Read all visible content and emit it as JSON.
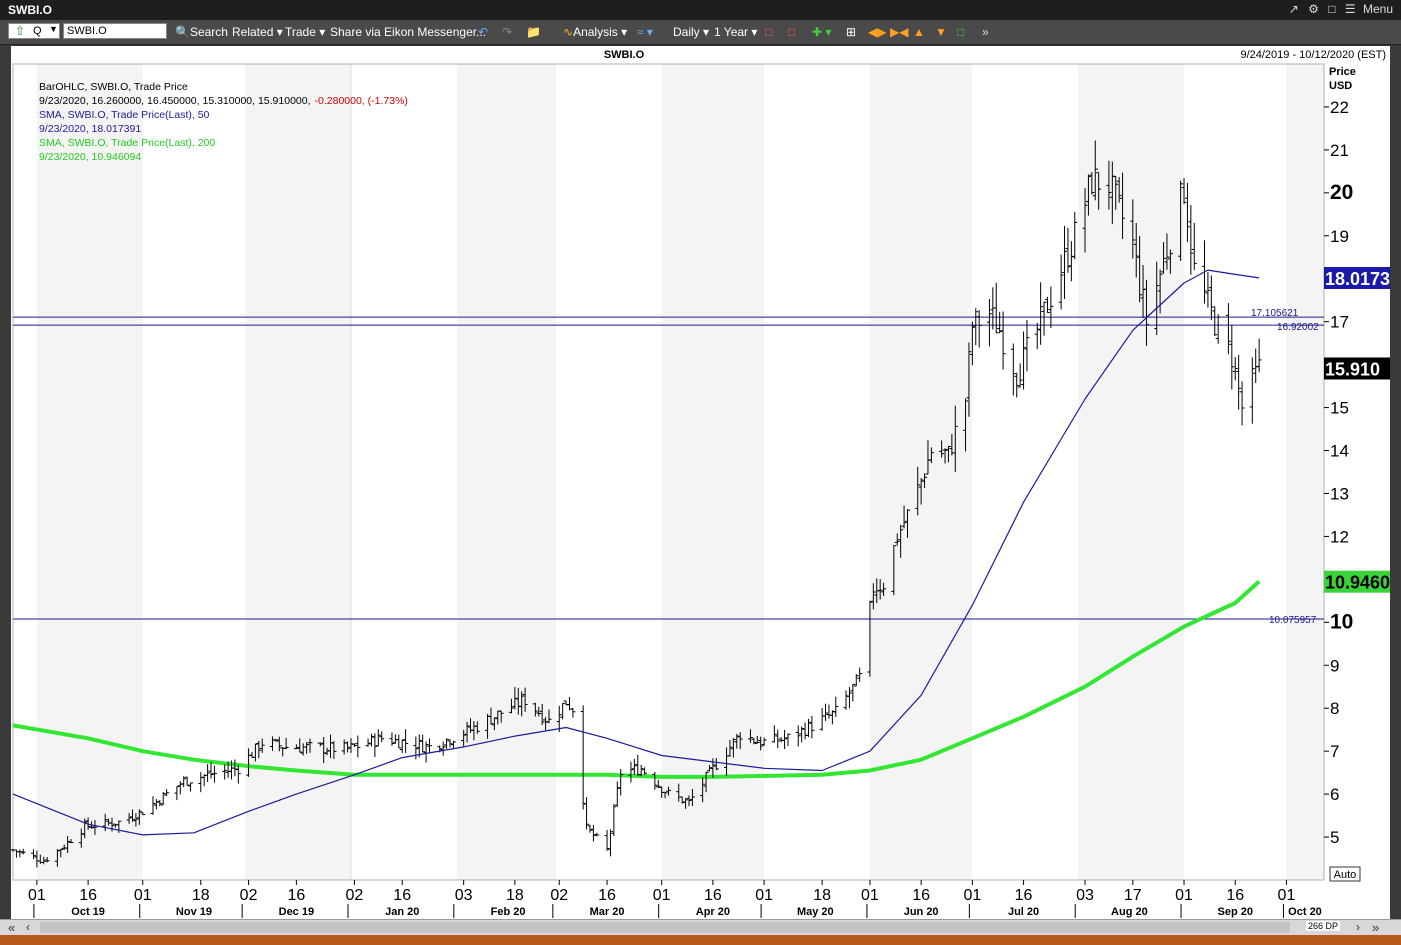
{
  "window": {
    "title": "SWBI.O",
    "menu_label": "Menu"
  },
  "toolbar": {
    "symbol_value": "SWBI.O",
    "q_label": "Q",
    "search_label": "Search",
    "related_label": "Related",
    "trade_label": "Trade",
    "share_label": "Share via Eikon Messenger...",
    "analysis_label": "Analysis",
    "interval_label": "Daily",
    "range_label": "1 Year"
  },
  "header": {
    "title": "SWBI.O",
    "date_range": "9/24/2019 - 10/12/2020 (EST)"
  },
  "legend": {
    "line1": "BarOHLC, SWBI.O, Trade Price",
    "line2_values": "9/23/2020, 16.260000, 16.450000, 15.310000, 15.910000,",
    "line2_change": "-0.280000, (-1.73%)",
    "line3": "SMA, SWBI.O, Trade Price(Last),  50",
    "line4": "9/23/2020, 18.017391",
    "line5": "SMA, SWBI.O, Trade Price(Last),  200",
    "line6": "9/23/2020, 10.946094"
  },
  "axis": {
    "price_label": "Price",
    "currency_label": "USD",
    "auto_label": "Auto",
    "dp_label": "266 DP"
  },
  "chart_data": {
    "type": "bar",
    "title": "SWBI.O",
    "ylim": [
      4.0,
      23.0
    ],
    "y_ticks": [
      5,
      6,
      7,
      8,
      9,
      10,
      11,
      12,
      13,
      14,
      15,
      16,
      17,
      18,
      19,
      20,
      21,
      22
    ],
    "bold_ticks": [
      10,
      20
    ],
    "x_day_labels": [
      "01",
      "16",
      "01",
      "18",
      "02",
      "16",
      "02",
      "16",
      "03",
      "18",
      "02",
      "16",
      "01",
      "16",
      "01",
      "18",
      "01",
      "16",
      "01",
      "16",
      "03",
      "17",
      "01",
      "16",
      "01"
    ],
    "x_day_label_dates": [
      "2019-10-01",
      "2019-10-16",
      "2019-11-01",
      "2019-11-18",
      "2019-12-02",
      "2019-12-16",
      "2020-01-02",
      "2020-01-16",
      "2020-02-03",
      "2020-02-18",
      "2020-03-02",
      "2020-03-16",
      "2020-04-01",
      "2020-04-16",
      "2020-05-01",
      "2020-05-18",
      "2020-06-01",
      "2020-06-16",
      "2020-07-01",
      "2020-07-16",
      "2020-08-03",
      "2020-08-17",
      "2020-09-01",
      "2020-09-16",
      "2020-10-01"
    ],
    "x_month_labels": [
      "Oct 19",
      "Nov 19",
      "Dec 19",
      "Jan 20",
      "Feb 20",
      "Mar 20",
      "Apr 20",
      "May 20",
      "Jun 20",
      "Jul 20",
      "Aug 20",
      "Sep 20",
      "Oct 20"
    ],
    "x_month_label_dates": [
      "2019-10-16",
      "2019-11-16",
      "2019-12-16",
      "2020-01-16",
      "2020-02-16",
      "2020-03-16",
      "2020-04-16",
      "2020-05-16",
      "2020-06-16",
      "2020-07-16",
      "2020-08-16",
      "2020-09-16",
      "2020-10-16"
    ],
    "x_range": [
      "2019-09-24",
      "2020-10-12"
    ],
    "price_path": [
      [
        "2019-09-24",
        4.7
      ],
      [
        "2019-10-03",
        4.45
      ],
      [
        "2019-10-09",
        4.8
      ],
      [
        "2019-10-15",
        5.25
      ],
      [
        "2019-10-25",
        5.35
      ],
      [
        "2019-11-01",
        5.6
      ],
      [
        "2019-11-08",
        6.0
      ],
      [
        "2019-11-13",
        6.3
      ],
      [
        "2019-11-20",
        6.45
      ],
      [
        "2019-11-29",
        6.6
      ],
      [
        "2019-12-06",
        7.2
      ],
      [
        "2019-12-13",
        7.1
      ],
      [
        "2019-12-31",
        7.05
      ],
      [
        "2020-01-10",
        7.3
      ],
      [
        "2020-01-24",
        7.1
      ],
      [
        "2020-02-05",
        7.5
      ],
      [
        "2020-02-14",
        7.9
      ],
      [
        "2020-02-21",
        8.2
      ],
      [
        "2020-02-28",
        7.7
      ],
      [
        "2020-03-04",
        8.15
      ],
      [
        "2020-03-06",
        8.0
      ],
      [
        "2020-03-10",
        5.2
      ],
      [
        "2020-03-16",
        4.7
      ],
      [
        "2020-03-20",
        6.5
      ],
      [
        "2020-03-26",
        6.6
      ],
      [
        "2020-04-03",
        6.0
      ],
      [
        "2020-04-09",
        5.8
      ],
      [
        "2020-04-16",
        6.6
      ],
      [
        "2020-04-24",
        7.4
      ],
      [
        "2020-04-30",
        7.2
      ],
      [
        "2020-05-08",
        7.3
      ],
      [
        "2020-05-15",
        7.6
      ],
      [
        "2020-05-22",
        7.9
      ],
      [
        "2020-05-29",
        8.7
      ],
      [
        "2020-06-02",
        10.8
      ],
      [
        "2020-06-05",
        10.9
      ],
      [
        "2020-06-09",
        12.0
      ],
      [
        "2020-06-12",
        12.5
      ],
      [
        "2020-06-16",
        13.3
      ],
      [
        "2020-06-19",
        14.0
      ],
      [
        "2020-06-24",
        13.9
      ],
      [
        "2020-06-29",
        15.2
      ],
      [
        "2020-07-01",
        16.9
      ],
      [
        "2020-07-06",
        17.2
      ],
      [
        "2020-07-09",
        16.8
      ],
      [
        "2020-07-14",
        15.8
      ],
      [
        "2020-07-20",
        16.8
      ],
      [
        "2020-07-27",
        18.2
      ],
      [
        "2020-07-31",
        19.0
      ],
      [
        "2020-08-05",
        20.3
      ],
      [
        "2020-08-10",
        20.2
      ],
      [
        "2020-08-17",
        18.8
      ],
      [
        "2020-08-21",
        17.0
      ],
      [
        "2020-08-26",
        18.4
      ],
      [
        "2020-09-01",
        20.1
      ],
      [
        "2020-09-04",
        18.2
      ],
      [
        "2020-09-10",
        17.0
      ],
      [
        "2020-09-15",
        16.2
      ],
      [
        "2020-09-18",
        15.0
      ],
      [
        "2020-09-21",
        15.6
      ],
      [
        "2020-09-23",
        15.91
      ]
    ],
    "sma50_path": [
      [
        "2019-09-24",
        6.0
      ],
      [
        "2019-10-16",
        5.3
      ],
      [
        "2019-11-01",
        5.05
      ],
      [
        "2019-11-16",
        5.1
      ],
      [
        "2019-12-02",
        5.6
      ],
      [
        "2019-12-16",
        6.0
      ],
      [
        "2020-01-02",
        6.45
      ],
      [
        "2020-01-16",
        6.85
      ],
      [
        "2020-02-03",
        7.1
      ],
      [
        "2020-02-18",
        7.35
      ],
      [
        "2020-03-04",
        7.55
      ],
      [
        "2020-03-16",
        7.3
      ],
      [
        "2020-04-01",
        6.9
      ],
      [
        "2020-04-16",
        6.75
      ],
      [
        "2020-05-01",
        6.6
      ],
      [
        "2020-05-18",
        6.55
      ],
      [
        "2020-06-01",
        7.0
      ],
      [
        "2020-06-16",
        8.3
      ],
      [
        "2020-07-01",
        10.4
      ],
      [
        "2020-07-16",
        12.8
      ],
      [
        "2020-08-03",
        15.2
      ],
      [
        "2020-08-17",
        16.8
      ],
      [
        "2020-09-01",
        17.9
      ],
      [
        "2020-09-08",
        18.2
      ],
      [
        "2020-09-16",
        18.1
      ],
      [
        "2020-09-23",
        18.02
      ]
    ],
    "sma200_path": [
      [
        "2019-09-24",
        7.6
      ],
      [
        "2019-10-16",
        7.3
      ],
      [
        "2019-11-01",
        7.0
      ],
      [
        "2019-11-16",
        6.8
      ],
      [
        "2019-12-02",
        6.65
      ],
      [
        "2019-12-16",
        6.55
      ],
      [
        "2020-01-02",
        6.45
      ],
      [
        "2020-02-03",
        6.45
      ],
      [
        "2020-03-02",
        6.45
      ],
      [
        "2020-03-16",
        6.45
      ],
      [
        "2020-04-01",
        6.4
      ],
      [
        "2020-04-16",
        6.4
      ],
      [
        "2020-05-18",
        6.45
      ],
      [
        "2020-06-01",
        6.55
      ],
      [
        "2020-06-16",
        6.8
      ],
      [
        "2020-07-01",
        7.3
      ],
      [
        "2020-07-16",
        7.8
      ],
      [
        "2020-08-03",
        8.5
      ],
      [
        "2020-08-17",
        9.2
      ],
      [
        "2020-09-01",
        9.9
      ],
      [
        "2020-09-16",
        10.45
      ],
      [
        "2020-09-23",
        10.95
      ]
    ],
    "horizontal_lines": [
      {
        "value": 17.105621,
        "label": "17.105621"
      },
      {
        "value": 16.92002,
        "label": "16.92002"
      },
      {
        "value": 10.075957,
        "label": "10.075957"
      }
    ],
    "last_value_tags": [
      {
        "value": 18.017391,
        "label": "18.0173",
        "color": "#1a1aa8"
      },
      {
        "value": 15.91,
        "label": "15.910",
        "color": "#000000"
      },
      {
        "value": 10.946094,
        "label": "10.9460",
        "color": "#3ad43a"
      }
    ],
    "series": [
      {
        "name": "BarOHLC, SWBI.O, Trade Price",
        "color": "#000000"
      },
      {
        "name": "SMA, SWBI.O, Trade Price(Last),  50",
        "color": "#1c1c9c"
      },
      {
        "name": "SMA, SWBI.O, Trade Price(Last),  200",
        "color": "#33e633"
      }
    ],
    "grid": false
  },
  "colors": {
    "background": "#3a3a3a",
    "plot_bg": "#ffffff",
    "band_bg": "#f4f4f4",
    "down_change": "#cc0000",
    "sma50": "#1c1c9c",
    "sma200": "#33e633"
  }
}
